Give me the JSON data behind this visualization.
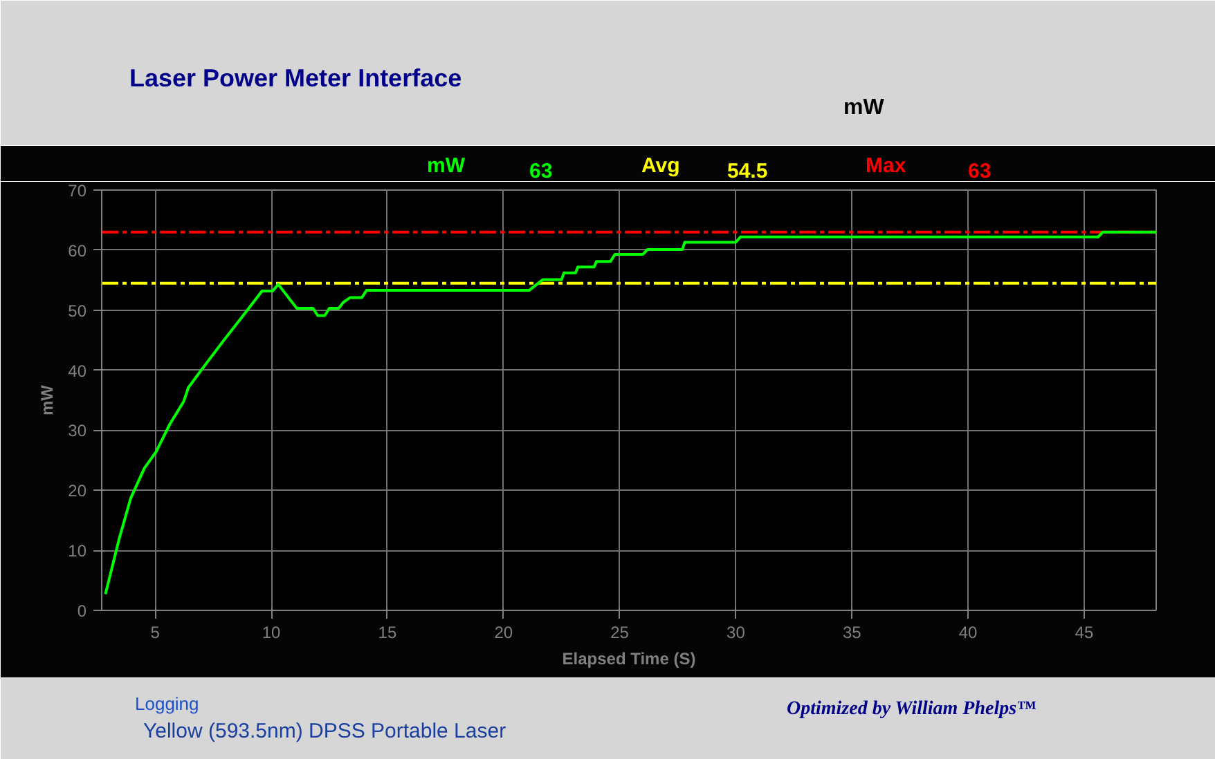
{
  "chart_data": {
    "type": "line",
    "title": "Laser Power Meter Interface",
    "xlabel": "Elapsed Time (S)",
    "ylabel": "mW",
    "annotations": [
      "mW",
      "mW",
      "63",
      "Avg",
      "54.5",
      "Max",
      "63",
      "Logging",
      "Yellow (593.5nm) DPSS Portable Laser",
      "Optimized by William Phelps™"
    ],
    "x": [
      2.86,
      3.45,
      3.95,
      4.54,
      5.04,
      5.63,
      6.23,
      6.43,
      7.02,
      7.92,
      8.91,
      9.6,
      10.06,
      10.3,
      10.6,
      11.1,
      11.8,
      12.0,
      12.3,
      12.5,
      12.9,
      13.1,
      13.4,
      13.9,
      14.1,
      21.1,
      21.7,
      22.5,
      22.6,
      23.1,
      23.2,
      23.9,
      24.0,
      24.6,
      24.8,
      26.0,
      26.2,
      27.7,
      27.8,
      30.0,
      30.2,
      45.6,
      45.8,
      48.1
    ],
    "series": [
      {
        "color": "#00ff00",
        "values": [
          2.7,
          11.9,
          18.7,
          23.7,
          26.4,
          31,
          34.8,
          37.1,
          40.2,
          44.8,
          49.7,
          53.2,
          53.2,
          54.3,
          52.8,
          50.3,
          50.3,
          49.1,
          49.1,
          50.3,
          50.3,
          51.3,
          52.1,
          52.1,
          53.3,
          53.3,
          55.1,
          55.1,
          56.2,
          56.2,
          57.2,
          57.2,
          58.1,
          58.1,
          59.3,
          59.3,
          60.1,
          60.1,
          61.3,
          61.3,
          62.2,
          62.2,
          63,
          63
        ]
      }
    ],
    "xlim": [
      2.7,
      48.1
    ],
    "ylim": [
      0,
      70
    ],
    "xticks": [
      5,
      10,
      15,
      20,
      25,
      30,
      35,
      40,
      45
    ],
    "yticks": [
      0,
      10,
      20,
      30,
      40,
      50,
      60,
      70
    ],
    "grid": true,
    "line_style": "solid",
    "marker": "none",
    "ref_lines": [
      {
        "axis": "y",
        "value": 63,
        "color": "#ff0000",
        "line_style": "dashdot"
      },
      {
        "axis": "y",
        "value": 54.5,
        "color": "#ffff00",
        "line_style": "dashdot"
      }
    ]
  }
}
